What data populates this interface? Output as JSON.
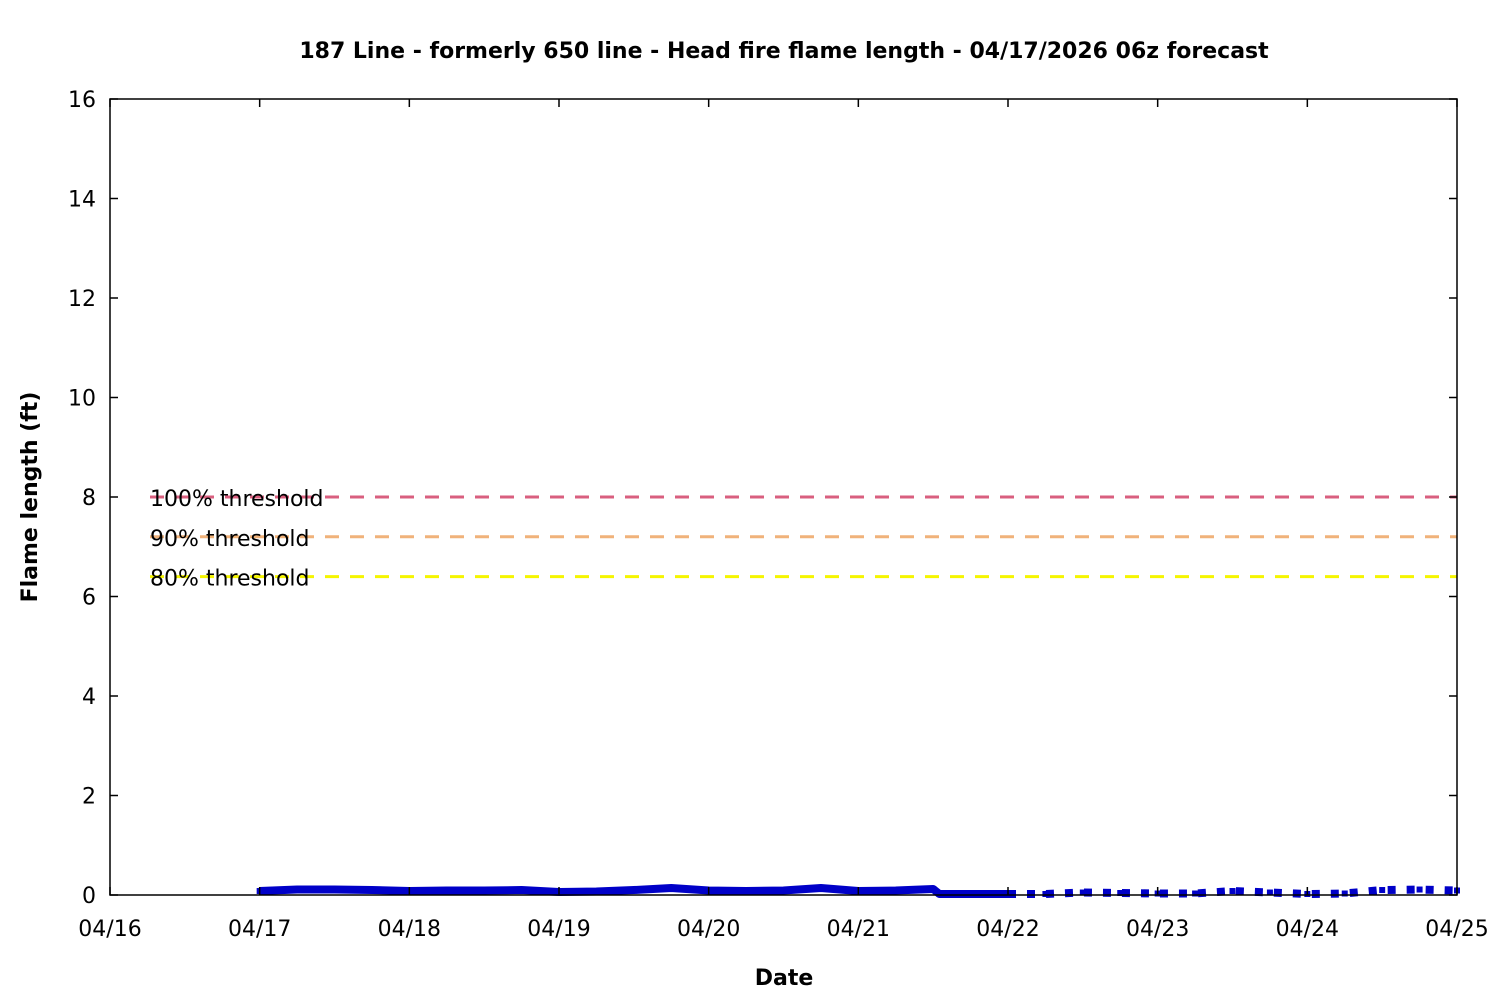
{
  "chart_data": {
    "type": "line",
    "title": "187 Line - formerly 650 line - Head fire flame length - 04/17/2026 06z forecast",
    "xlabel": "Date",
    "ylabel": "Flame length (ft)",
    "xlim": [
      "04/16",
      "04/25"
    ],
    "ylim": [
      0,
      16
    ],
    "x_ticks": [
      "04/16",
      "04/17",
      "04/18",
      "04/19",
      "04/20",
      "04/21",
      "04/22",
      "04/23",
      "04/24",
      "04/25"
    ],
    "y_ticks": [
      0,
      2,
      4,
      6,
      8,
      10,
      12,
      14,
      16
    ],
    "grid": false,
    "thresholds": [
      {
        "name": "100% threshold",
        "value": 8.0,
        "color": "#d95f7f"
      },
      {
        "name": "90% threshold",
        "value": 7.2,
        "color": "#f0b27a"
      },
      {
        "name": "80% threshold",
        "value": 6.4,
        "color": "#f5f500"
      }
    ],
    "series": [
      {
        "style": "thick-line",
        "color": "#0000c8",
        "x": [
          "04/17 00z",
          "04/17 06z",
          "04/17 12z",
          "04/17 18z",
          "04/18 00z",
          "04/18 06z",
          "04/18 12z",
          "04/18 18z",
          "04/19 00z",
          "04/19 06z",
          "04/19 12z",
          "04/19 18z",
          "04/20 00z",
          "04/20 06z",
          "04/20 12z",
          "04/20 18z",
          "04/21 00z",
          "04/21 06z",
          "04/21 12z",
          "04/21 13z",
          "04/21 18z",
          "04/22 00z"
        ],
        "y": [
          0.08,
          0.11,
          0.11,
          0.1,
          0.08,
          0.09,
          0.09,
          0.1,
          0.06,
          0.07,
          0.1,
          0.14,
          0.09,
          0.08,
          0.09,
          0.14,
          0.08,
          0.09,
          0.12,
          0.02,
          0.02,
          0.02
        ]
      },
      {
        "style": "dotted",
        "color": "#0000c8",
        "x": [
          "04/22 00z",
          "04/22 06z",
          "04/22 12z",
          "04/22 18z",
          "04/23 00z",
          "04/23 06z",
          "04/23 12z",
          "04/23 18z",
          "04/24 00z",
          "04/24 06z",
          "04/24 12z",
          "04/24 18z",
          "04/25 00z"
        ],
        "y": [
          0.02,
          0.02,
          0.05,
          0.04,
          0.03,
          0.03,
          0.08,
          0.05,
          0.02,
          0.03,
          0.1,
          0.11,
          0.09
        ]
      }
    ]
  }
}
